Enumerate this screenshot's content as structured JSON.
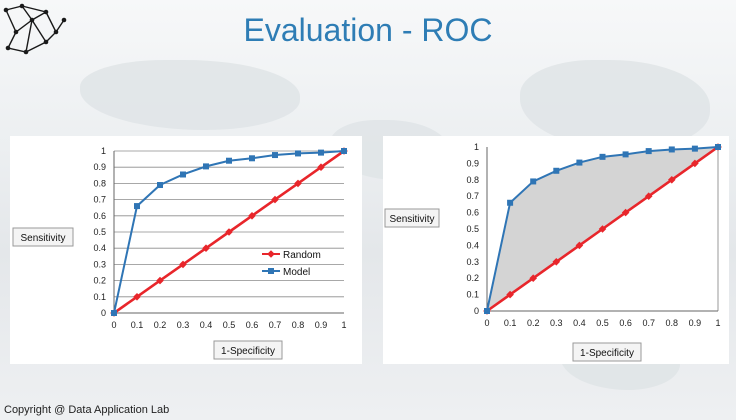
{
  "slide": {
    "title": "Evaluation - ROC",
    "footer": "Copyright @ Data Application Lab"
  },
  "chart_data": [
    {
      "type": "line",
      "title": "",
      "xlabel": "1-Specificity",
      "ylabel": "Sensitivity",
      "xlim": [
        0,
        1
      ],
      "ylim": [
        0,
        1
      ],
      "xticks": [
        "0",
        "0.1",
        "0.2",
        "0.3",
        "0.4",
        "0.5",
        "0.6",
        "0.7",
        "0.8",
        "0.9",
        "1"
      ],
      "yticks": [
        "0",
        "0.1",
        "0.2",
        "0.3",
        "0.4",
        "0.5",
        "0.6",
        "0.7",
        "0.8",
        "0.9",
        "1"
      ],
      "grid": "horizontal",
      "legend": "bottom-right",
      "series": [
        {
          "name": "Random",
          "color": "#e8262b",
          "marker": "diamond",
          "x": [
            0,
            0.1,
            0.2,
            0.3,
            0.4,
            0.5,
            0.6,
            0.7,
            0.8,
            0.9,
            1
          ],
          "y": [
            0,
            0.1,
            0.2,
            0.3,
            0.4,
            0.5,
            0.6,
            0.7,
            0.8,
            0.9,
            1
          ]
        },
        {
          "name": "Model",
          "color": "#2f75b5",
          "marker": "square",
          "x": [
            0,
            0.1,
            0.2,
            0.3,
            0.4,
            0.5,
            0.6,
            0.7,
            0.8,
            0.9,
            1
          ],
          "y": [
            0,
            0.66,
            0.79,
            0.855,
            0.905,
            0.94,
            0.955,
            0.975,
            0.985,
            0.99,
            1
          ]
        }
      ]
    },
    {
      "type": "area",
      "title": "",
      "xlabel": "1-Specificity",
      "ylabel": "Sensitivity",
      "xlim": [
        0,
        1
      ],
      "ylim": [
        0,
        1
      ],
      "xticks": [
        "0",
        "0.1",
        "0.2",
        "0.3",
        "0.4",
        "0.5",
        "0.6",
        "0.7",
        "0.8",
        "0.9",
        "1"
      ],
      "yticks": [
        "0",
        "0.1",
        "0.2",
        "0.3",
        "0.4",
        "0.5",
        "0.6",
        "0.7",
        "0.8",
        "0.9",
        "1"
      ],
      "grid": "none",
      "legend": "none",
      "shaded": "area between Model and Random",
      "series": [
        {
          "name": "",
          "color": "#e8262b",
          "marker": "diamond",
          "x": [
            0,
            0.1,
            0.2,
            0.3,
            0.4,
            0.5,
            0.6,
            0.7,
            0.8,
            0.9,
            1
          ],
          "y": [
            0,
            0.1,
            0.2,
            0.3,
            0.4,
            0.5,
            0.6,
            0.7,
            0.8,
            0.9,
            1
          ]
        },
        {
          "name": "",
          "color": "#2f75b5",
          "marker": "square",
          "x": [
            0,
            0.1,
            0.2,
            0.3,
            0.4,
            0.5,
            0.6,
            0.7,
            0.8,
            0.9,
            1
          ],
          "y": [
            0,
            0.66,
            0.79,
            0.855,
            0.905,
            0.94,
            0.955,
            0.975,
            0.985,
            0.99,
            1
          ]
        }
      ]
    }
  ]
}
